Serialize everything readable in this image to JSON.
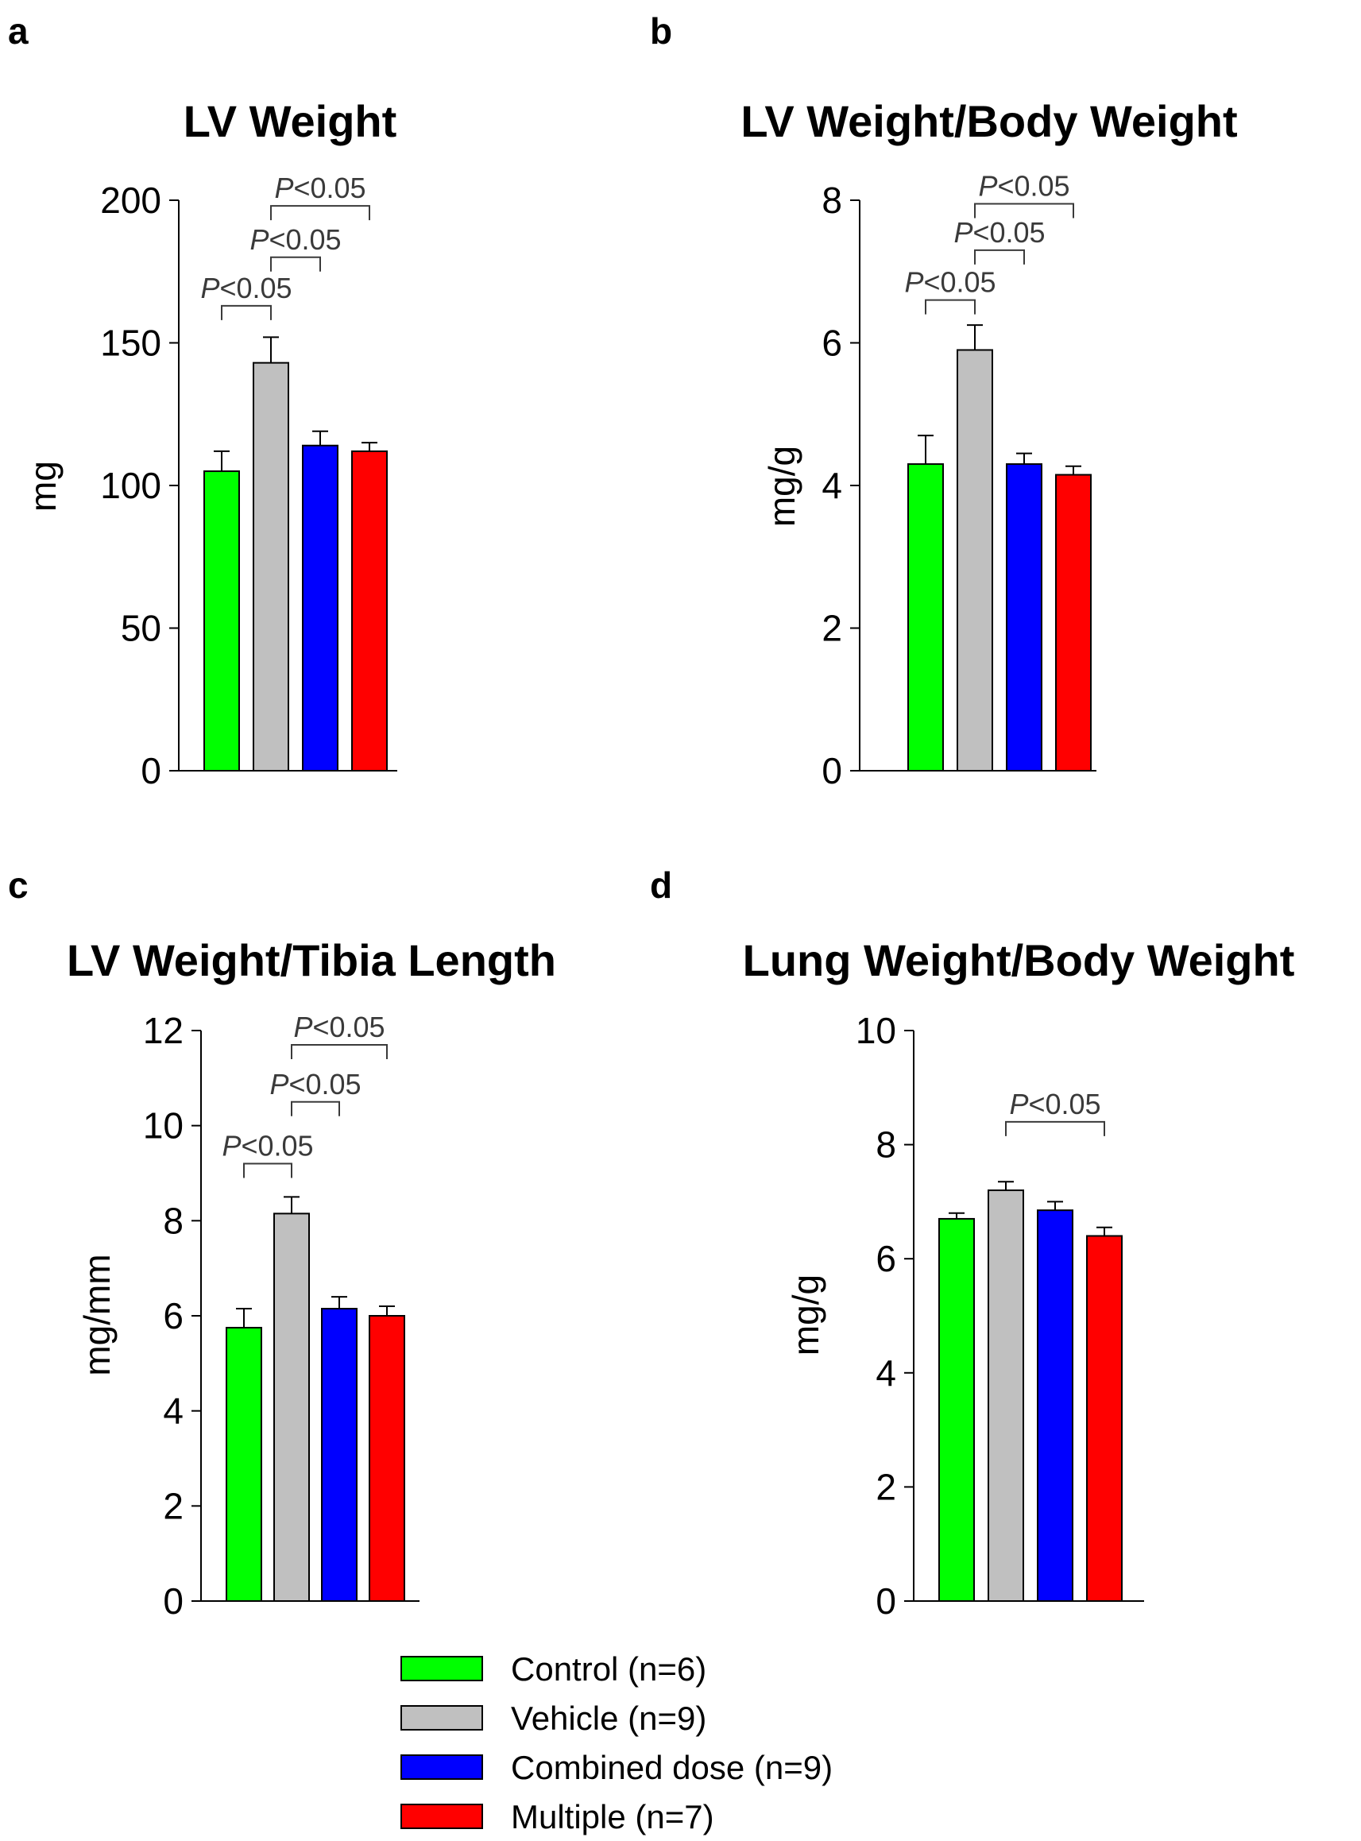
{
  "groups": [
    {
      "name": "Control (n=6)",
      "color": "#00ff00"
    },
    {
      "name": "Vehicle (n=9)",
      "color": "#c0c0c0"
    },
    {
      "name": "Combined dose (n=9)",
      "color": "#0000ff"
    },
    {
      "name": "Multiple (n=7)",
      "color": "#ff0000"
    }
  ],
  "chart_data": [
    {
      "type": "bar",
      "panel": "a",
      "title": "LV Weight",
      "ylabel": "mg",
      "categories": [
        "Control (n=6)",
        "Vehicle (n=9)",
        "Combined dose (n=9)",
        "Multiple (n=7)"
      ],
      "values": [
        105,
        143,
        114,
        112
      ],
      "errors": [
        7,
        9,
        5,
        3
      ],
      "ylim": [
        0,
        200
      ],
      "yticks": [
        0,
        50,
        100,
        150,
        200
      ],
      "ytick_labels": [
        "0",
        "50",
        "100",
        "150",
        "200"
      ],
      "significance": [
        {
          "from": 0,
          "to": 1,
          "y": 163,
          "label_italic": "P",
          "label_rest": "<0.05"
        },
        {
          "from": 1,
          "to": 2,
          "y": 180,
          "label_italic": "P",
          "label_rest": "<0.05"
        },
        {
          "from": 1,
          "to": 3,
          "y": 198,
          "label_italic": "P",
          "label_rest": "<0.05"
        }
      ]
    },
    {
      "type": "bar",
      "panel": "b",
      "title": "LV Weight/Body Weight",
      "ylabel": "mg/g",
      "categories": [
        "Control (n=6)",
        "Vehicle (n=9)",
        "Combined dose (n=9)",
        "Multiple (n=7)"
      ],
      "values": [
        4.3,
        5.9,
        4.3,
        4.15
      ],
      "errors": [
        0.4,
        0.35,
        0.15,
        0.12
      ],
      "ylim": [
        0,
        8
      ],
      "yticks": [
        0,
        2,
        4,
        6,
        8
      ],
      "ytick_labels": [
        "0",
        "2",
        "4",
        "6",
        "8"
      ],
      "significance": [
        {
          "from": 0,
          "to": 1,
          "y": 6.6,
          "label_italic": "P",
          "label_rest": "<0.05"
        },
        {
          "from": 1,
          "to": 2,
          "y": 7.3,
          "label_italic": "P",
          "label_rest": "<0.05"
        },
        {
          "from": 1,
          "to": 3,
          "y": 7.95,
          "label_italic": "P",
          "label_rest": "<0.05"
        }
      ]
    },
    {
      "type": "bar",
      "panel": "c",
      "title": "LV Weight/Tibia Length",
      "ylabel": "mg/mm",
      "categories": [
        "Control (n=6)",
        "Vehicle (n=9)",
        "Combined dose (n=9)",
        "Multiple (n=7)"
      ],
      "values": [
        5.75,
        8.15,
        6.15,
        6.0
      ],
      "errors": [
        0.4,
        0.35,
        0.25,
        0.2
      ],
      "ylim": [
        0,
        12
      ],
      "yticks": [
        0,
        2,
        4,
        6,
        8,
        10,
        12
      ],
      "ytick_labels": [
        "0",
        "2",
        "4",
        "6",
        "8",
        "10",
        "12"
      ],
      "significance": [
        {
          "from": 0,
          "to": 1,
          "y": 9.2,
          "label_italic": "P",
          "label_rest": "<0.05"
        },
        {
          "from": 1,
          "to": 2,
          "y": 10.5,
          "label_italic": "P",
          "label_rest": "<0.05"
        },
        {
          "from": 1,
          "to": 3,
          "y": 11.7,
          "label_italic": "P",
          "label_rest": "<0.05"
        }
      ]
    },
    {
      "type": "bar",
      "panel": "d",
      "title": "Lung Weight/Body Weight",
      "ylabel": "mg/g",
      "categories": [
        "Control (n=6)",
        "Vehicle (n=9)",
        "Combined dose (n=9)",
        "Multiple (n=7)"
      ],
      "values": [
        6.7,
        7.2,
        6.85,
        6.4
      ],
      "errors": [
        0.1,
        0.15,
        0.15,
        0.15
      ],
      "ylim": [
        0,
        10
      ],
      "yticks": [
        0,
        2,
        4,
        6,
        8,
        10
      ],
      "ytick_labels": [
        "0",
        "2",
        "4",
        "6",
        "8",
        "10"
      ],
      "significance": [
        {
          "from": 1,
          "to": 3,
          "y": 8.4,
          "label_italic": "P",
          "label_rest": "<0.05"
        }
      ]
    }
  ]
}
